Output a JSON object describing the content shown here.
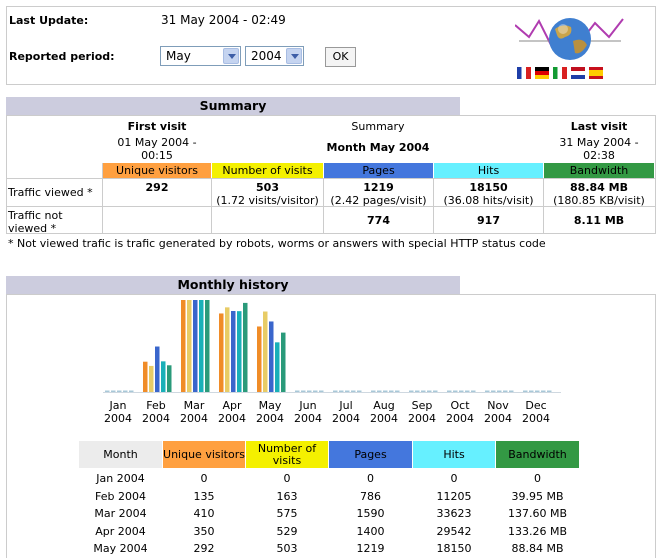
{
  "header": {
    "last_update_label": "Last Update:",
    "last_update_value": "31 May 2004 - 02:49",
    "period_label": "Reported period:",
    "month_select": "May",
    "year_select": "2004",
    "ok_button": "OK"
  },
  "summary": {
    "section_title": "Summary",
    "first_visit_title": "First visit",
    "first_visit_value": "01 May 2004 - 00:15",
    "summary_label": "Summary",
    "month_label": "Month May 2004",
    "last_visit_title": "Last visit",
    "last_visit_value": "31 May 2004 - 02:38",
    "columns": [
      "Unique visitors",
      "Number of visits",
      "Pages",
      "Hits",
      "Bandwidth"
    ],
    "column_colors": [
      "#ffa040",
      "#f4f000",
      "#4477dd",
      "#66f0ff",
      "#339944"
    ],
    "traffic_viewed_label": "Traffic viewed *",
    "traffic_viewed": {
      "unique": "292",
      "visits": "503",
      "visits_sub": "(1.72 visits/visitor)",
      "pages": "1219",
      "pages_sub": "(2.42 pages/visit)",
      "hits": "18150",
      "hits_sub": "(36.08 hits/visit)",
      "bandwidth": "88.84 MB",
      "bandwidth_sub": "(180.85 KB/visit)"
    },
    "traffic_not_viewed_label": "Traffic not viewed *",
    "traffic_not_viewed": {
      "pages": "774",
      "hits": "917",
      "bandwidth": "8.11 MB"
    },
    "footnote": "* Not viewed trafic is trafic generated by robots, worms or answers with special HTTP status code"
  },
  "history": {
    "section_title": "Monthly history",
    "month_labels": [
      [
        "Jan",
        "2004"
      ],
      [
        "Feb",
        "2004"
      ],
      [
        "Mar",
        "2004"
      ],
      [
        "Apr",
        "2004"
      ],
      [
        "May",
        "2004"
      ],
      [
        "Jun",
        "2004"
      ],
      [
        "Jul",
        "2004"
      ],
      [
        "Aug",
        "2004"
      ],
      [
        "Sep",
        "2004"
      ],
      [
        "Oct",
        "2004"
      ],
      [
        "Nov",
        "2004"
      ],
      [
        "Dec",
        "2004"
      ]
    ],
    "table_headers": [
      "Month",
      "Unique visitors",
      "Number of visits",
      "Pages",
      "Hits",
      "Bandwidth"
    ],
    "rows": [
      [
        "Jan 2004",
        "0",
        "0",
        "0",
        "0",
        "0"
      ],
      [
        "Feb 2004",
        "135",
        "163",
        "786",
        "11205",
        "39.95 MB"
      ],
      [
        "Mar 2004",
        "410",
        "575",
        "1590",
        "33623",
        "137.60 MB"
      ],
      [
        "Apr 2004",
        "350",
        "529",
        "1400",
        "29542",
        "133.26 MB"
      ],
      [
        "May 2004",
        "292",
        "503",
        "1219",
        "18150",
        "88.84 MB"
      ]
    ]
  },
  "chart_data": {
    "type": "bar",
    "categories": [
      "Jan 2004",
      "Feb 2004",
      "Mar 2004",
      "Apr 2004",
      "May 2004",
      "Jun 2004",
      "Jul 2004",
      "Aug 2004",
      "Sep 2004",
      "Oct 2004",
      "Nov 2004",
      "Dec 2004"
    ],
    "series": [
      {
        "name": "Unique visitors",
        "color": "#f08c28",
        "values": [
          0,
          135,
          410,
          350,
          292,
          0,
          0,
          0,
          0,
          0,
          0,
          0
        ]
      },
      {
        "name": "Number of visits",
        "color": "#e8cc66",
        "values": [
          0,
          163,
          575,
          529,
          503,
          0,
          0,
          0,
          0,
          0,
          0,
          0
        ]
      },
      {
        "name": "Pages",
        "color": "#3a66cc",
        "values": [
          0,
          786,
          1590,
          1400,
          1219,
          0,
          0,
          0,
          0,
          0,
          0,
          0
        ]
      },
      {
        "name": "Hits",
        "color": "#19b0b8",
        "values": [
          0,
          11205,
          33623,
          29542,
          18150,
          0,
          0,
          0,
          0,
          0,
          0,
          0
        ]
      },
      {
        "name": "Bandwidth",
        "color": "#2a9a7a",
        "values": [
          0,
          39.95,
          137.6,
          133.26,
          88.84,
          0,
          0,
          0,
          0,
          0,
          0,
          0
        ]
      }
    ],
    "title": "",
    "xlabel": "",
    "ylabel": ""
  }
}
